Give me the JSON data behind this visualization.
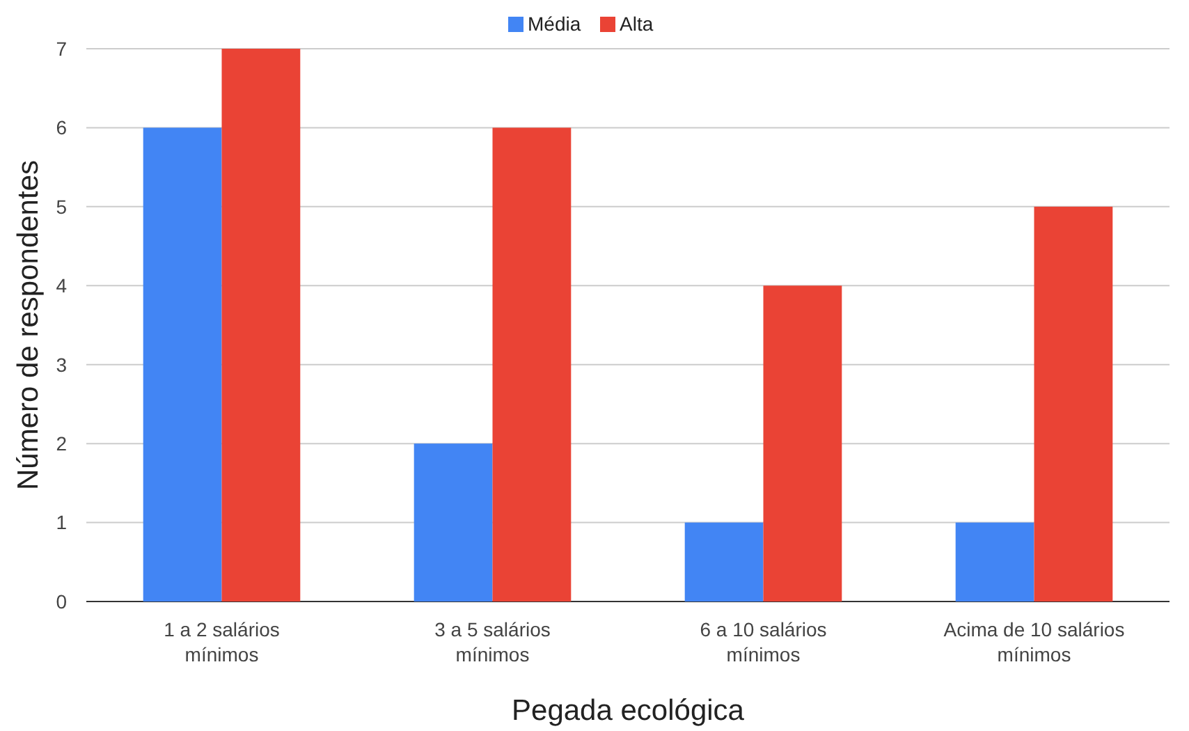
{
  "chart_data": {
    "type": "bar",
    "xlabel": "Pegada ecológica",
    "ylabel": "Número de respondentes",
    "categories": [
      "1 a 2 salários mínimos",
      "3 a 5 salários mínimos",
      "6 a 10 salários mínimos",
      "Acima de 10 salários mínimos"
    ],
    "series": [
      {
        "name": "Média",
        "color": "#4285f4",
        "values": [
          6,
          2,
          1,
          1
        ]
      },
      {
        "name": "Alta",
        "color": "#ea4335",
        "values": [
          7,
          6,
          4,
          5
        ]
      }
    ],
    "ylim": [
      0,
      7
    ],
    "yticks": [
      0,
      1,
      2,
      3,
      4,
      5,
      6,
      7
    ],
    "grid": "y",
    "legend": "top"
  }
}
